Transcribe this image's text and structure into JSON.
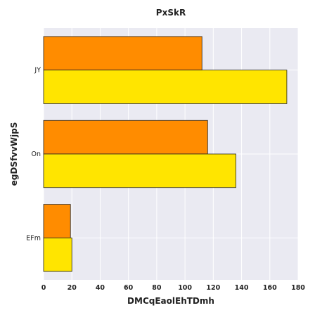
{
  "chart_data": {
    "type": "bar",
    "orientation": "horizontal",
    "title": "PxSkR",
    "xlabel": "DMCqEaolEhTDmh",
    "ylabel": "egDSfvvWjpS",
    "categories": [
      "JY",
      "On",
      "EFm"
    ],
    "series": [
      {
        "color": "#ff8c00",
        "values": [
          112,
          116,
          19
        ]
      },
      {
        "color": "#ffe500",
        "values": [
          172,
          136,
          20
        ]
      }
    ],
    "xlim": [
      0,
      180
    ],
    "xticks": [
      0,
      20,
      40,
      60,
      80,
      100,
      120,
      140,
      160,
      180
    ],
    "grid": true,
    "background": "#eaeaf2"
  }
}
